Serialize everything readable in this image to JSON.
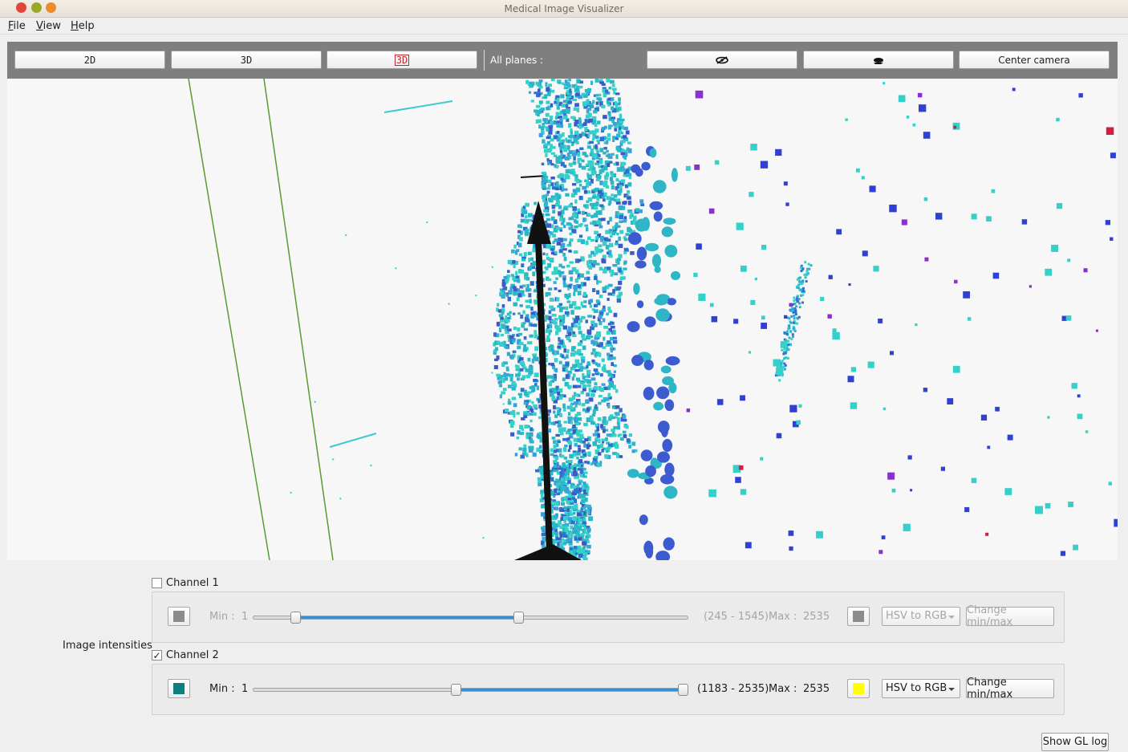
{
  "window": {
    "title": "Medical Image Visualizer"
  },
  "menu": {
    "file": "File",
    "view": "View",
    "help": "Help"
  },
  "toolbar": {
    "btn_2d": "2D",
    "btn_3d": "3D",
    "btn_3d_active": "3D",
    "all_planes_label": "All planes :",
    "hide_planes_icon": "eye-crossed-icon",
    "show_planes_icon": "eye-icon",
    "center_camera": "Center camera"
  },
  "intensities": {
    "label": "Image intensities",
    "channel1": {
      "name": "Channel 1",
      "checked": false,
      "color": "#8c8c8c",
      "min_label": "Min :",
      "min_value": "1",
      "range": "(245 - 1545)",
      "max_label": "Max :",
      "max_value": "2535",
      "range_low": 245,
      "range_high": 1545,
      "max_color": "#8c8c8c",
      "colormap": "HSV to RGB",
      "change_btn": "Change min/max"
    },
    "channel2": {
      "name": "Channel 2",
      "checked": true,
      "check_glyph": "✓",
      "color": "#0e7f7f",
      "min_label": "Min :",
      "min_value": "1",
      "range": "(1183 - 2535)",
      "max_label": "Max :",
      "max_value": "2535",
      "range_low": 1183,
      "range_high": 2535,
      "max_color": "#ffff00",
      "colormap": "HSV to RGB",
      "change_btn": "Change min/max"
    }
  },
  "footer": {
    "show_gl_log": "Show GL log"
  }
}
